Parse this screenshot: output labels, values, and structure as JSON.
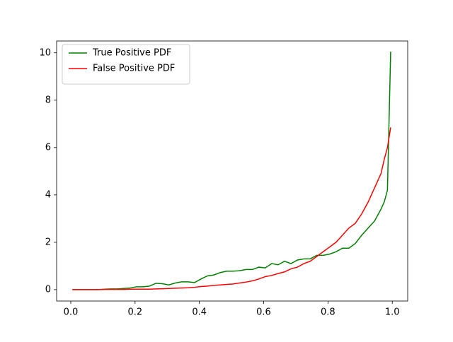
{
  "chart_data": {
    "type": "line",
    "x": [
      0.005,
      0.025,
      0.045,
      0.065,
      0.085,
      0.105,
      0.125,
      0.145,
      0.165,
      0.185,
      0.205,
      0.225,
      0.245,
      0.265,
      0.285,
      0.305,
      0.325,
      0.345,
      0.365,
      0.385,
      0.405,
      0.425,
      0.445,
      0.465,
      0.485,
      0.505,
      0.525,
      0.545,
      0.565,
      0.585,
      0.605,
      0.625,
      0.645,
      0.665,
      0.685,
      0.705,
      0.725,
      0.745,
      0.765,
      0.785,
      0.805,
      0.825,
      0.845,
      0.865,
      0.885,
      0.905,
      0.925,
      0.945,
      0.965,
      0.975,
      0.985,
      0.995
    ],
    "series": [
      {
        "name": "True Positive PDF",
        "color": "#008000",
        "values": [
          0,
          0,
          0,
          0,
          0,
          0.02,
          0.03,
          0.03,
          0.05,
          0.07,
          0.12,
          0.12,
          0.15,
          0.27,
          0.25,
          0.2,
          0.28,
          0.33,
          0.33,
          0.3,
          0.45,
          0.58,
          0.62,
          0.72,
          0.78,
          0.78,
          0.8,
          0.85,
          0.85,
          0.95,
          0.92,
          1.1,
          1.05,
          1.2,
          1.1,
          1.25,
          1.3,
          1.3,
          1.45,
          1.45,
          1.5,
          1.6,
          1.75,
          1.75,
          1.95,
          2.3,
          2.6,
          2.9,
          3.4,
          3.7,
          4.2,
          10.05
        ]
      },
      {
        "name": "False Positive PDF",
        "color": "#ff0000",
        "values": [
          0,
          0,
          0,
          0,
          0,
          0.01,
          0.01,
          0.01,
          0.01,
          0.02,
          0.02,
          0.02,
          0.02,
          0.03,
          0.04,
          0.05,
          0.06,
          0.07,
          0.08,
          0.1,
          0.13,
          0.15,
          0.18,
          0.2,
          0.22,
          0.24,
          0.28,
          0.32,
          0.37,
          0.45,
          0.55,
          0.6,
          0.68,
          0.75,
          0.88,
          0.95,
          1.1,
          1.2,
          1.4,
          1.6,
          1.8,
          2.0,
          2.3,
          2.6,
          2.8,
          3.2,
          3.7,
          4.3,
          4.9,
          5.5,
          6.0,
          6.85
        ]
      }
    ],
    "xlim": [
      -0.044,
      1.048
    ],
    "ylim": [
      -0.48,
      10.5
    ],
    "xticks": [
      {
        "value": 0,
        "label": "0.0"
      },
      {
        "value": 0.2,
        "label": "0.2"
      },
      {
        "value": 0.4,
        "label": "0.4"
      },
      {
        "value": 0.6,
        "label": "0.6"
      },
      {
        "value": 0.8,
        "label": "0.8"
      },
      {
        "value": 1,
        "label": "1.0"
      }
    ],
    "yticks": [
      0,
      2,
      4,
      6,
      8,
      10
    ],
    "grid": false,
    "legend": "upper-left"
  }
}
